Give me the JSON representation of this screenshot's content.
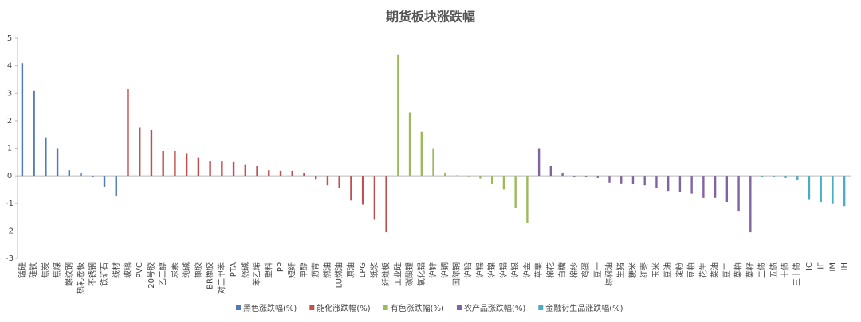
{
  "chart_data": {
    "type": "bar",
    "title": "期货板块涨跌幅",
    "categories": [
      "锰硅",
      "硅铁",
      "焦炭",
      "焦煤",
      "螺纹钢",
      "热轧卷板",
      "不锈钢",
      "铁矿石",
      "线材",
      "玻璃",
      "PVC",
      "20号胶",
      "乙二醇",
      "尿素",
      "纯碱",
      "橡胶",
      "BR橡胶",
      "对二甲苯",
      "PTA",
      "烧碱",
      "苯乙烯",
      "塑料",
      "PP",
      "短纤",
      "甲醇",
      "沥青",
      "燃油",
      "LU燃油",
      "原油",
      "LPG",
      "纸浆",
      "纤维板",
      "工业硅",
      "碳酸锂",
      "氧化铝",
      "沪锌",
      "沪铜",
      "国际铜",
      "沪铅",
      "沪锡",
      "沪镍",
      "沪铝",
      "沪银",
      "沪金",
      "苹果",
      "棉花",
      "白糖",
      "棉纱",
      "鸡蛋",
      "豆一",
      "棕榈油",
      "生猪",
      "粳米",
      "红枣",
      "玉米",
      "豆油",
      "淀粉",
      "豆粕",
      "花生",
      "菜油",
      "豆二",
      "菜粕",
      "菜籽",
      "二债",
      "五债",
      "十债",
      "三十债",
      "IC",
      "IF",
      "IM",
      "IH"
    ],
    "series": [
      {
        "name": "黑色涨跌幅(%)",
        "color": "#4f7bbd",
        "values": [
          4.1,
          3.1,
          1.4,
          1.0,
          0.2,
          0.1,
          -0.05,
          -0.4,
          -0.75,
          null,
          null,
          null,
          null,
          null,
          null,
          null,
          null,
          null,
          null,
          null,
          null,
          null,
          null,
          null,
          null,
          null,
          null,
          null,
          null,
          null,
          null,
          null,
          null,
          null,
          null,
          null,
          null,
          null,
          null,
          null,
          null,
          null,
          null,
          null,
          null,
          null,
          null,
          null,
          null,
          null,
          null,
          null,
          null,
          null,
          null,
          null,
          null,
          null,
          null,
          null,
          null,
          null,
          null,
          null,
          null,
          null,
          null,
          null,
          null,
          null,
          null
        ]
      },
      {
        "name": "能化涨跌幅(%)",
        "color": "#c0504d",
        "values": [
          null,
          null,
          null,
          null,
          null,
          null,
          null,
          null,
          null,
          3.15,
          1.75,
          1.65,
          0.9,
          0.9,
          0.8,
          0.65,
          0.55,
          0.52,
          0.5,
          0.42,
          0.35,
          0.2,
          0.18,
          0.18,
          0.12,
          -0.12,
          -0.35,
          -0.45,
          -0.9,
          -1.05,
          -1.6,
          -2.05,
          null,
          null,
          null,
          null,
          null,
          null,
          null,
          null,
          null,
          null,
          null,
          null,
          null,
          null,
          null,
          null,
          null,
          null,
          null,
          null,
          null,
          null,
          null,
          null,
          null,
          null,
          null,
          null,
          null,
          null,
          null,
          null,
          null,
          null,
          null,
          null,
          null,
          null,
          null
        ]
      },
      {
        "name": "有色涨跌幅(%)",
        "color": "#9bbb59",
        "values": [
          null,
          null,
          null,
          null,
          null,
          null,
          null,
          null,
          null,
          null,
          null,
          null,
          null,
          null,
          null,
          null,
          null,
          null,
          null,
          null,
          null,
          null,
          null,
          null,
          null,
          null,
          null,
          null,
          null,
          null,
          null,
          null,
          4.4,
          2.3,
          1.6,
          1.0,
          0.12,
          0.02,
          -0.02,
          -0.1,
          -0.3,
          -0.5,
          -1.15,
          -1.7,
          null,
          null,
          null,
          null,
          null,
          null,
          null,
          null,
          null,
          null,
          null,
          null,
          null,
          null,
          null,
          null,
          null,
          null,
          null,
          null,
          null,
          null,
          null,
          null,
          null,
          null,
          null
        ]
      },
      {
        "name": "农产品涨跌幅(%)",
        "color": "#8064a2",
        "values": [
          null,
          null,
          null,
          null,
          null,
          null,
          null,
          null,
          null,
          null,
          null,
          null,
          null,
          null,
          null,
          null,
          null,
          null,
          null,
          null,
          null,
          null,
          null,
          null,
          null,
          null,
          null,
          null,
          null,
          null,
          null,
          null,
          null,
          null,
          null,
          null,
          null,
          null,
          null,
          null,
          null,
          null,
          null,
          null,
          1.0,
          0.35,
          0.1,
          -0.05,
          -0.05,
          -0.08,
          -0.25,
          -0.28,
          -0.3,
          -0.35,
          -0.45,
          -0.55,
          -0.6,
          -0.65,
          -0.8,
          -0.8,
          -0.95,
          -1.3,
          -2.05,
          null,
          null,
          null,
          null,
          null,
          null,
          null,
          null
        ]
      },
      {
        "name": "金融衍生品涨跌幅(%)",
        "color": "#4bacc6",
        "values": [
          null,
          null,
          null,
          null,
          null,
          null,
          null,
          null,
          null,
          null,
          null,
          null,
          null,
          null,
          null,
          null,
          null,
          null,
          null,
          null,
          null,
          null,
          null,
          null,
          null,
          null,
          null,
          null,
          null,
          null,
          null,
          null,
          null,
          null,
          null,
          null,
          null,
          null,
          null,
          null,
          null,
          null,
          null,
          null,
          null,
          null,
          null,
          null,
          null,
          null,
          null,
          null,
          null,
          null,
          null,
          null,
          null,
          null,
          null,
          null,
          null,
          null,
          null,
          -0.03,
          -0.05,
          -0.08,
          -0.15,
          -0.85,
          -0.95,
          -1.0,
          -1.1
        ]
      }
    ],
    "ylim": [
      -3,
      5
    ],
    "yticks": [
      -3,
      -2,
      -1,
      0,
      1,
      2,
      3,
      4,
      5
    ],
    "legend": "bottom"
  }
}
